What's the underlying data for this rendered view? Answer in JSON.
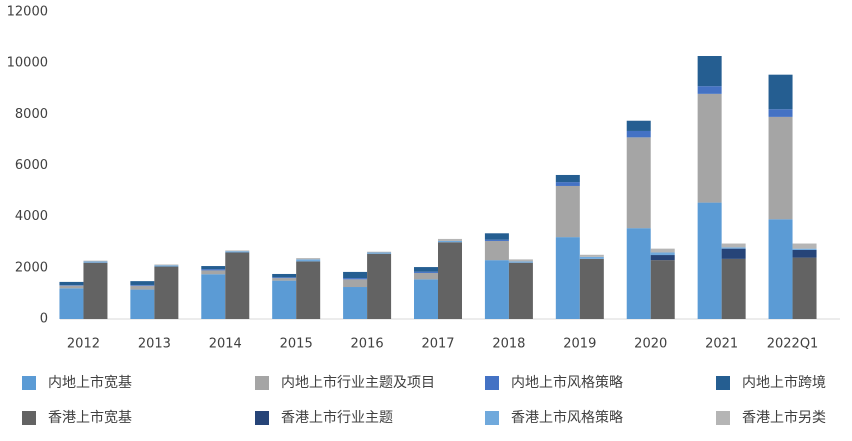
{
  "chart_data": {
    "type": "grouped-stacked-bar",
    "categories": [
      "2012",
      "2013",
      "2014",
      "2015",
      "2016",
      "2017",
      "2018",
      "2019",
      "2020",
      "2021",
      "2022Q1"
    ],
    "ylim": [
      0,
      12000
    ],
    "yticks": [
      0,
      2000,
      4000,
      6000,
      8000,
      10000,
      12000
    ],
    "groups": [
      {
        "series": [
          {
            "name": "内地上市宽基",
            "color": "#5b9bd5",
            "values": [
              1200,
              1150,
              1750,
              1500,
              1250,
              1550,
              2300,
              3200,
              3550,
              4550,
              3900
            ]
          },
          {
            "name": "内地上市行业主题及项目",
            "color": "#a5a5a5",
            "values": [
              100,
              150,
              150,
              100,
              300,
              250,
              750,
              2000,
              3550,
              4250,
              4000
            ]
          },
          {
            "name": "内地上市风格策略",
            "color": "#4472c4",
            "values": [
              20,
              30,
              50,
              30,
              50,
              50,
              50,
              150,
              250,
              300,
              300
            ]
          },
          {
            "name": "内地上市跨境",
            "color": "#255e91",
            "values": [
              130,
              150,
              120,
              130,
              240,
              180,
              250,
              280,
              400,
              1180,
              1350
            ]
          }
        ]
      },
      {
        "series": [
          {
            "name": "香港上市宽基",
            "color": "#636363",
            "values": [
              2200,
              2050,
              2600,
              2250,
              2550,
              3000,
              2200,
              2350,
              2300,
              2350,
              2400
            ]
          },
          {
            "name": "香港上市行业主题",
            "color": "#264478",
            "values": [
              0,
              0,
              0,
              0,
              0,
              0,
              0,
              0,
              200,
              400,
              300
            ]
          },
          {
            "name": "香港上市风格策略",
            "color": "#70a9dc",
            "values": [
              50,
              50,
              50,
              80,
              50,
              50,
              50,
              80,
              100,
              50,
              50
            ]
          },
          {
            "name": "香港上市另类",
            "color": "#b5b5b5",
            "values": [
              30,
              30,
              30,
              50,
              30,
              80,
              80,
              80,
              150,
              150,
              200
            ]
          }
        ]
      }
    ]
  }
}
